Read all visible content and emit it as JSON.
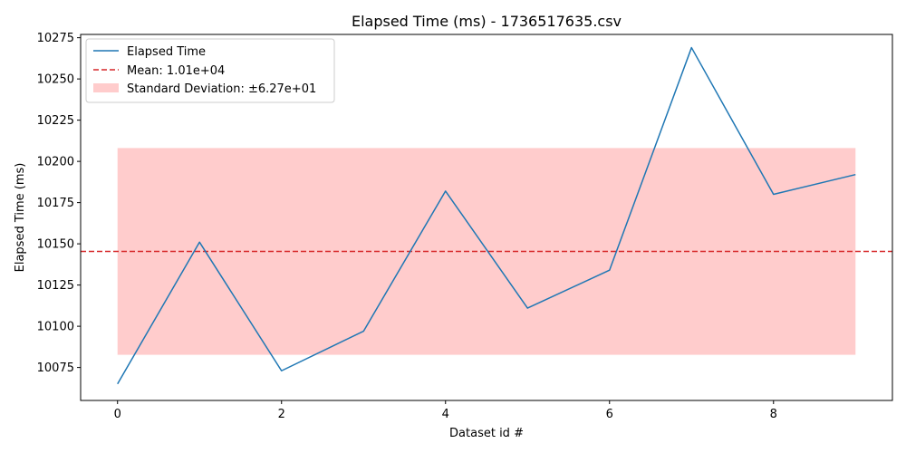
{
  "chart_data": {
    "type": "line",
    "title": "Elapsed Time (ms) - 1736517635.csv",
    "xlabel": "Dataset id #",
    "ylabel": "Elapsed Time (ms)",
    "x": [
      0,
      1,
      2,
      3,
      4,
      5,
      6,
      7,
      8,
      9
    ],
    "xlim": [
      -0.45,
      9.45
    ],
    "ylim": [
      10055,
      10277
    ],
    "x_ticks": [
      0,
      2,
      4,
      6,
      8
    ],
    "y_ticks": [
      10075,
      10100,
      10125,
      10150,
      10175,
      10200,
      10225,
      10250,
      10275
    ],
    "grid": false,
    "legend_position": "top-left",
    "series": [
      {
        "name": "Elapsed Time",
        "values": [
          10065,
          10151,
          10073,
          10097,
          10182,
          10111,
          10134,
          10269,
          10180,
          10192
        ],
        "color": "#1f77b4"
      }
    ],
    "mean": {
      "label": "Mean: 1.01e+04",
      "value": 10145.4,
      "color": "#d62728"
    },
    "std_band": {
      "label": "Standard Deviation: ±6.27e+01",
      "lower": 10082.7,
      "upper": 10208.1,
      "x_range": [
        0,
        9
      ],
      "color": "#ff9999"
    }
  }
}
